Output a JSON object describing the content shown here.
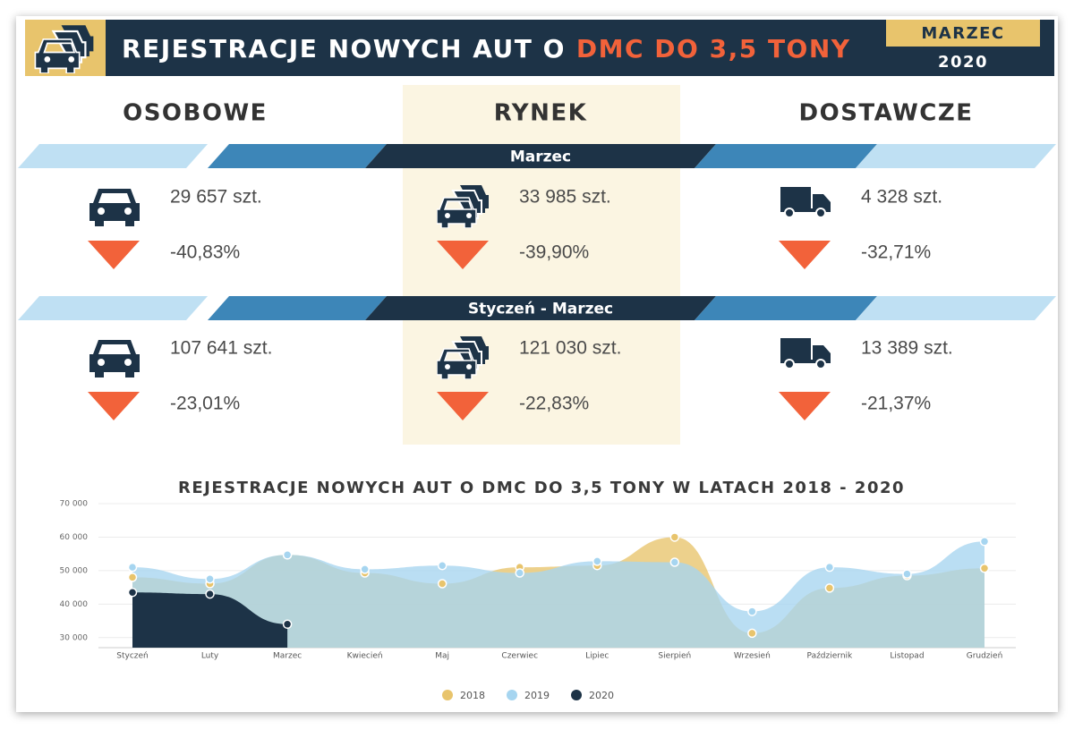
{
  "header": {
    "title": "REJESTRACJE NOWYCH AUT O",
    "title_highlight": "DMC DO 3,5 TONY",
    "month": "MARZEC",
    "year": "2020"
  },
  "columns": [
    "OSOBOWE",
    "RYNEK",
    "DOSTAWCZE"
  ],
  "periods": [
    {
      "label": "Marzec",
      "stats": [
        {
          "value": "29 657 szt.",
          "change": "-40,83%"
        },
        {
          "value": "33 985 szt.",
          "change": "-39,90%"
        },
        {
          "value": "4 328 szt.",
          "change": "-32,71%"
        }
      ]
    },
    {
      "label": "Styczeń - Marzec",
      "stats": [
        {
          "value": "107 641 szt.",
          "change": "-23,01%"
        },
        {
          "value": "121 030 szt.",
          "change": "-22,83%"
        },
        {
          "value": "13 389 szt.",
          "change": "-21,37%"
        }
      ]
    }
  ],
  "chart_data": {
    "type": "area",
    "title": "REJESTRACJE NOWYCH AUT O DMC DO 3,5 TONY W LATACH 2018 - 2020",
    "categories": [
      "Styczeń",
      "Luty",
      "Marzec",
      "Kwiecień",
      "Maj",
      "Czerwiec",
      "Lipiec",
      "Sierpień",
      "Wrzesień",
      "Październik",
      "Listopad",
      "Grudzień"
    ],
    "series": [
      {
        "name": "2018",
        "color": "#e8c46c",
        "values": [
          48000,
          46100,
          54700,
          49300,
          46100,
          51000,
          51500,
          60000,
          31300,
          44800,
          48500,
          50700
        ]
      },
      {
        "name": "2019",
        "color": "#a6d5f0",
        "values": [
          51000,
          47500,
          54700,
          50400,
          51500,
          49300,
          52800,
          52500,
          37800,
          51000,
          49000,
          58700
        ]
      },
      {
        "name": "2020",
        "color": "#1d3347",
        "values": [
          43500,
          43000,
          34000,
          null,
          null,
          null,
          null,
          null,
          null,
          null,
          null,
          null
        ]
      }
    ],
    "ylim": [
      27000,
      70000
    ],
    "yticks": [
      {
        "value": 30000,
        "label": "30 000"
      },
      {
        "value": 40000,
        "label": "40 000"
      },
      {
        "value": 50000,
        "label": "50 000"
      },
      {
        "value": 60000,
        "label": "60 000"
      },
      {
        "value": 70000,
        "label": "70 000"
      }
    ],
    "grid": true,
    "legend": "bottom"
  }
}
